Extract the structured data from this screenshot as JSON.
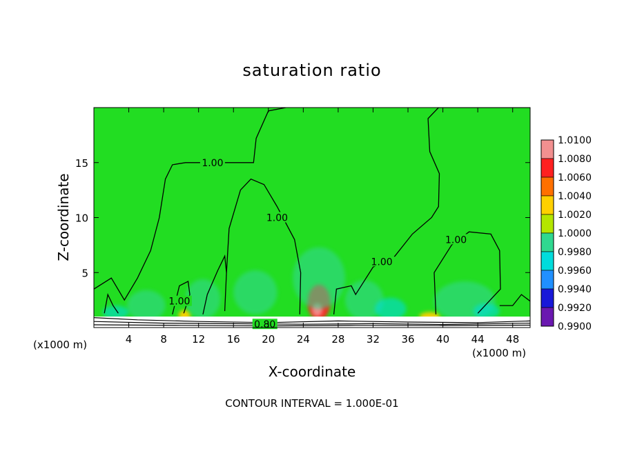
{
  "chart_data": {
    "type": "heatmap",
    "title": "saturation ratio",
    "xlabel": "X-coordinate",
    "ylabel": "Z-coordinate",
    "x_unit": "(x1000 m)",
    "y_unit": "(x1000 m)",
    "footer": "CONTOUR INTERVAL = 1.000E-01",
    "xlim": [
      0,
      50
    ],
    "ylim": [
      0,
      20
    ],
    "x_ticks": [
      4,
      8,
      12,
      16,
      20,
      24,
      28,
      32,
      36,
      40,
      44,
      48
    ],
    "y_ticks": [
      5,
      10,
      15
    ],
    "colorbar": {
      "labels": [
        "1.0100",
        "1.0080",
        "1.0060",
        "1.0040",
        "1.0020",
        "1.0000",
        "0.9980",
        "0.9960",
        "0.9940",
        "0.9920",
        "0.9900"
      ],
      "colors": [
        "#f29090",
        "#ff2020",
        "#ff7000",
        "#ffd000",
        "#b4e600",
        "#22dd22",
        "#30d890",
        "#00dcdc",
        "#2090ff",
        "#1818d8",
        "#6a18b0"
      ]
    },
    "background_value": 1.0,
    "contour_labels": [
      {
        "text": "1.00",
        "x": 13.6,
        "z": 15.0
      },
      {
        "text": "1.00",
        "x": 21.0,
        "z": 10.0
      },
      {
        "text": "1.00",
        "x": 33.0,
        "z": 6.0
      },
      {
        "text": "1.00",
        "x": 41.5,
        "z": 8.0
      },
      {
        "text": "1.00",
        "x": 9.8,
        "z": 2.4
      },
      {
        "text": "0.80",
        "x": 19.6,
        "z": 0.3
      }
    ],
    "contours_1_00": [
      [
        [
          0,
          3.5
        ],
        [
          2,
          4.5
        ],
        [
          3.5,
          2.5
        ],
        [
          5,
          4.5
        ],
        [
          6.5,
          7
        ],
        [
          7.5,
          10
        ],
        [
          8.2,
          13.5
        ],
        [
          9,
          14.8
        ],
        [
          10.5,
          15
        ],
        [
          18.3,
          15
        ],
        [
          18.6,
          17.2
        ],
        [
          20,
          19.7
        ],
        [
          22,
          20
        ]
      ],
      [
        [
          15,
          1.5
        ],
        [
          15.2,
          5
        ],
        [
          15.5,
          9
        ],
        [
          16.8,
          12.5
        ],
        [
          18,
          13.5
        ],
        [
          19.5,
          13
        ],
        [
          21,
          11
        ],
        [
          23,
          8
        ],
        [
          23.7,
          5
        ],
        [
          23.6,
          1.2
        ]
      ],
      [
        [
          27.5,
          1.2
        ],
        [
          27.8,
          3.5
        ],
        [
          29.5,
          3.8
        ],
        [
          30,
          3
        ],
        [
          32,
          5.5
        ],
        [
          34.5,
          6.5
        ],
        [
          36.5,
          8.5
        ],
        [
          38.7,
          10
        ],
        [
          39.5,
          11
        ],
        [
          39.6,
          14
        ],
        [
          38.5,
          16
        ],
        [
          38.3,
          19
        ],
        [
          39.5,
          20
        ],
        [
          50,
          20
        ]
      ],
      [
        [
          39.2,
          1.2
        ],
        [
          39,
          5
        ],
        [
          41,
          7.5
        ],
        [
          43,
          8.7
        ],
        [
          45.5,
          8.5
        ],
        [
          46.5,
          7
        ],
        [
          46.6,
          3.5
        ],
        [
          44,
          1.3
        ]
      ],
      [
        [
          9,
          1.2
        ],
        [
          9.8,
          3.8
        ],
        [
          10.8,
          4.2
        ],
        [
          11,
          3
        ],
        [
          10.3,
          1.3
        ]
      ],
      [
        [
          12.5,
          1.2
        ],
        [
          13,
          3
        ],
        [
          14.2,
          5.2
        ],
        [
          15,
          6.5
        ],
        [
          15.2,
          5
        ]
      ],
      [
        [
          46.5,
          2
        ],
        [
          48,
          2
        ],
        [
          49,
          3
        ],
        [
          50,
          2.4
        ]
      ],
      [
        [
          1.2,
          1.3
        ],
        [
          1.6,
          3
        ],
        [
          2.2,
          2
        ],
        [
          2.8,
          1.3
        ]
      ]
    ],
    "contours_0_80": [
      [
        [
          0,
          0.9
        ],
        [
          5,
          0.7
        ],
        [
          12,
          0.55
        ],
        [
          20,
          0.45
        ],
        [
          28,
          0.6
        ],
        [
          36,
          0.5
        ],
        [
          44,
          0.45
        ],
        [
          50,
          0.6
        ]
      ],
      [
        [
          0,
          0.55
        ],
        [
          8,
          0.4
        ],
        [
          16,
          0.35
        ],
        [
          24,
          0.3
        ],
        [
          32,
          0.35
        ],
        [
          40,
          0.28
        ],
        [
          50,
          0.4
        ]
      ],
      [
        [
          0,
          0.25
        ],
        [
          10,
          0.2
        ],
        [
          20,
          0.15
        ],
        [
          30,
          0.2
        ],
        [
          40,
          0.18
        ],
        [
          50,
          0.22
        ]
      ]
    ],
    "anomalies": [
      {
        "x": 25.8,
        "z": 2.3,
        "rx": 1.3,
        "rz": 1.6,
        "level": 1.008
      },
      {
        "x": 25.6,
        "z": 1.6,
        "rx": 0.6,
        "rz": 0.6,
        "level": 1.01
      },
      {
        "x": 10.4,
        "z": 1.1,
        "rx": 0.7,
        "rz": 0.5,
        "level": 1.004
      },
      {
        "x": 38.5,
        "z": 1.0,
        "rx": 1.2,
        "rz": 0.4,
        "level": 1.004
      },
      {
        "x": 25.8,
        "z": 4.5,
        "rx": 3.0,
        "rz": 2.8,
        "level": 0.998
      },
      {
        "x": 31.0,
        "z": 2.5,
        "rx": 2.2,
        "rz": 1.8,
        "level": 0.998
      },
      {
        "x": 34.0,
        "z": 1.7,
        "rx": 1.8,
        "rz": 1.0,
        "level": 0.996
      },
      {
        "x": 18.5,
        "z": 3.2,
        "rx": 2.5,
        "rz": 2.0,
        "level": 0.998
      },
      {
        "x": 6.0,
        "z": 2.0,
        "rx": 2.2,
        "rz": 1.4,
        "level": 0.998
      },
      {
        "x": 12.5,
        "z": 2.6,
        "rx": 2.0,
        "rz": 1.8,
        "level": 0.998
      },
      {
        "x": 42.5,
        "z": 2.4,
        "rx": 3.5,
        "rz": 1.8,
        "level": 0.998
      },
      {
        "x": 45.0,
        "z": 1.5,
        "rx": 1.5,
        "rz": 0.7,
        "level": 0.996
      },
      {
        "x": 2.5,
        "z": 1.4,
        "rx": 1.5,
        "rz": 0.6,
        "level": 0.996
      }
    ]
  }
}
